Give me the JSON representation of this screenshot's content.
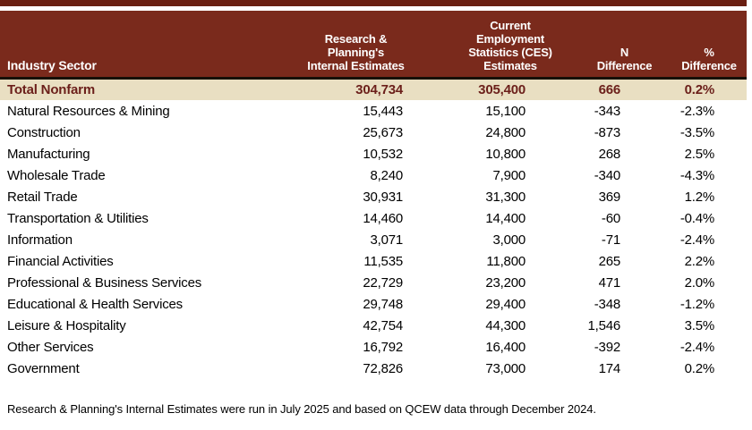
{
  "chart_data": {
    "type": "table",
    "columns": [
      "Industry Sector",
      "Research &\nPlanning's\nInternal Estimates",
      "Current\nEmployment\nStatistics (CES)\nEstimates",
      "N\nDifference",
      "%\nDifference"
    ],
    "rows": [
      {
        "sector": "Total Nonfarm",
        "internal": "304,734",
        "ces": "305,400",
        "n_difference": "666",
        "pct_difference": "0.2%",
        "emphasis": true
      },
      {
        "sector": "Natural Resources & Mining",
        "internal": "15,443",
        "ces": "15,100",
        "n_difference": "-343",
        "pct_difference": "-2.3%",
        "emphasis": false
      },
      {
        "sector": "Construction",
        "internal": "25,673",
        "ces": "24,800",
        "n_difference": "-873",
        "pct_difference": "-3.5%",
        "emphasis": false
      },
      {
        "sector": "Manufacturing",
        "internal": "10,532",
        "ces": "10,800",
        "n_difference": "268",
        "pct_difference": "2.5%",
        "emphasis": false
      },
      {
        "sector": "Wholesale Trade",
        "internal": "8,240",
        "ces": "7,900",
        "n_difference": "-340",
        "pct_difference": "-4.3%",
        "emphasis": false
      },
      {
        "sector": "Retail Trade",
        "internal": "30,931",
        "ces": "31,300",
        "n_difference": "369",
        "pct_difference": "1.2%",
        "emphasis": false
      },
      {
        "sector": "Transportation & Utilities",
        "internal": "14,460",
        "ces": "14,400",
        "n_difference": "-60",
        "pct_difference": "-0.4%",
        "emphasis": false
      },
      {
        "sector": "Information",
        "internal": "3,071",
        "ces": "3,000",
        "n_difference": "-71",
        "pct_difference": "-2.4%",
        "emphasis": false
      },
      {
        "sector": "Financial Activities",
        "internal": "11,535",
        "ces": "11,800",
        "n_difference": "265",
        "pct_difference": "2.2%",
        "emphasis": false
      },
      {
        "sector": "Professional & Business Services",
        "internal": "22,729",
        "ces": "23,200",
        "n_difference": "471",
        "pct_difference": "2.0%",
        "emphasis": false
      },
      {
        "sector": "Educational & Health Services",
        "internal": "29,748",
        "ces": "29,400",
        "n_difference": "-348",
        "pct_difference": "-1.2%",
        "emphasis": false
      },
      {
        "sector": "Leisure & Hospitality",
        "internal": "42,754",
        "ces": "44,300",
        "n_difference": "1,546",
        "pct_difference": "3.5%",
        "emphasis": false
      },
      {
        "sector": "Other Services",
        "internal": "16,792",
        "ces": "16,400",
        "n_difference": "-392",
        "pct_difference": "-2.4%",
        "emphasis": false
      },
      {
        "sector": "Government",
        "internal": "72,826",
        "ces": "73,000",
        "n_difference": "174",
        "pct_difference": "0.2%",
        "emphasis": false
      }
    ],
    "footnote": "Research & Planning's Internal Estimates were run in July 2025 and based on QCEW data through December 2024.",
    "title": "",
    "legend": null
  },
  "colors": {
    "top_bar": "#6a1f12",
    "header_bg": "#7a2a1c",
    "header_text": "#ffffff",
    "divider": "#171008",
    "total_row_bg": "#e9dfc2",
    "total_row_text": "#6b1f1a",
    "body_text": "#000000"
  }
}
